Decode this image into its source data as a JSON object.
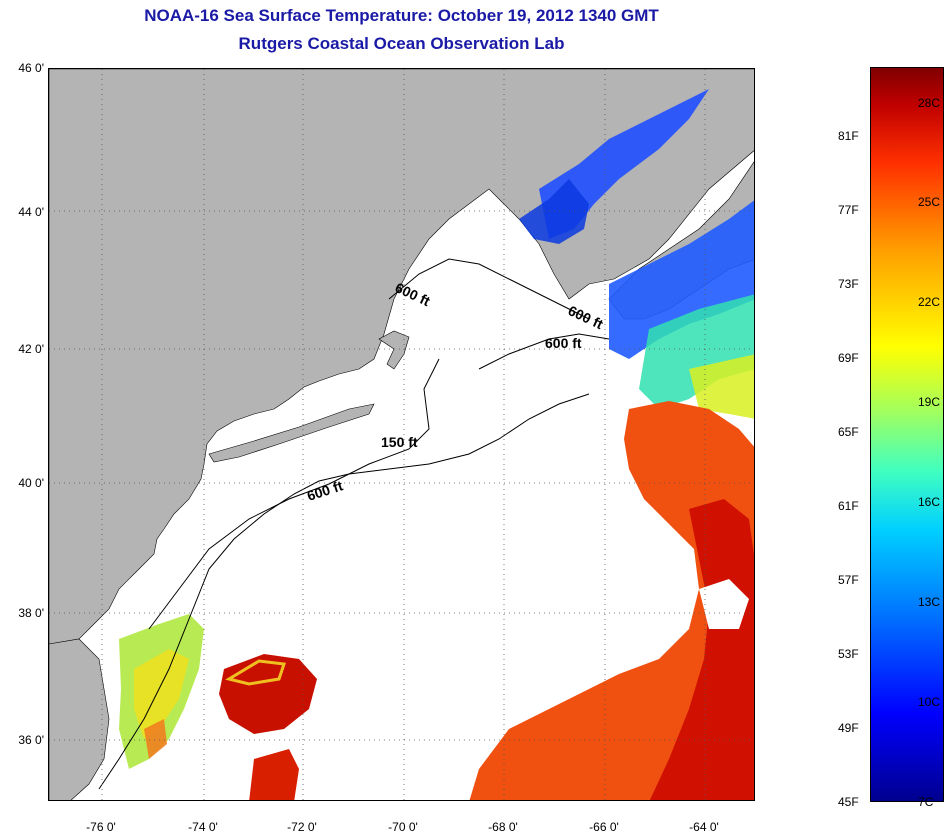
{
  "title_line1": "NOAA-16 Sea Surface Temperature:  October 19, 2012 1340 GMT",
  "title_line2": "Rutgers Coastal Ocean Observation Lab",
  "map": {
    "lat_labels": [
      "46 0'",
      "44 0'",
      "42 0'",
      "40 0'",
      "38 0'",
      "36 0'"
    ],
    "lon_labels": [
      "-76 0'",
      "-74 0'",
      "-72 0'",
      "-70 0'",
      "-68 0'",
      "-66 0'",
      "-64 0'"
    ],
    "contour_labels": [
      "600 ft",
      "600 ft",
      "600 ft",
      "150 ft",
      "600 ft"
    ],
    "colors": {
      "land": "#b4b4b4",
      "cloud": "#ffffff",
      "cold_water": "#1f4fff",
      "gulf_stream": "#e02000"
    }
  },
  "colorbar": {
    "celsius_labels": [
      "28C",
      "25C",
      "22C",
      "19C",
      "16C",
      "13C",
      "10C",
      "7C"
    ],
    "fahrenheit_labels": [
      "81F",
      "77F",
      "73F",
      "69F",
      "65F",
      "61F",
      "57F",
      "53F",
      "49F",
      "45F"
    ]
  }
}
